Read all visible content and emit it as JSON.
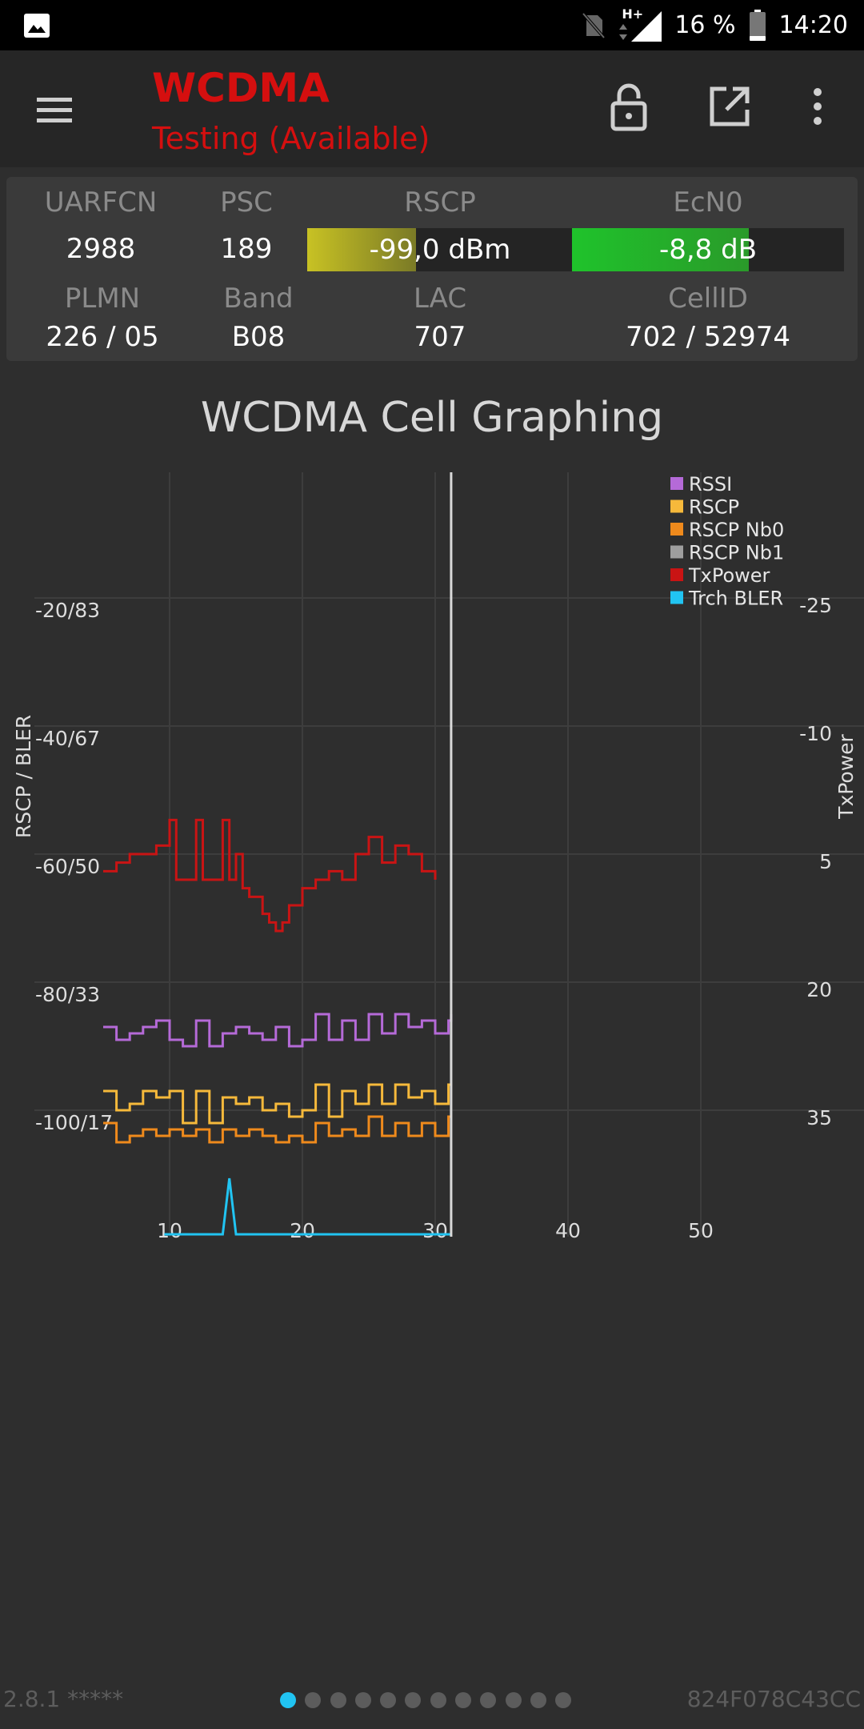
{
  "status_bar": {
    "network_type": "H+",
    "battery_percent": "16 %",
    "time": "14:20",
    "icons": [
      "gallery-icon",
      "no-sim-icon",
      "data-arrows-icon",
      "signal-icon",
      "battery-icon"
    ]
  },
  "app_bar": {
    "title": "WCDMA",
    "subtitle": "Testing (Available)",
    "title_color": "#d50f0f",
    "icons": [
      "menu-icon",
      "lock-open-icon",
      "open-external-icon",
      "more-vert-icon"
    ]
  },
  "cell_info": {
    "uarfcn_label": "UARFCN",
    "uarfcn": "2988",
    "psc_label": "PSC",
    "psc": "189",
    "rscp_label": "RSCP",
    "rscp": "-99,0 dBm",
    "rscp_level": 0.41,
    "rscp_color": "#c8c224",
    "ecn0_label": "EcN0",
    "ecn0": "-8,8 dB",
    "ecn0_level": 0.65,
    "ecn0_color": "#1fc32b",
    "plmn_label": "PLMN",
    "plmn": "226 / 05",
    "band_label": "Band",
    "band": "B08",
    "lac_label": "LAC",
    "lac": "707",
    "cellid_label": "CellID",
    "cellid": "702 / 52974"
  },
  "chart_data": {
    "type": "line",
    "title": "WCDMA Cell Graphing",
    "ylabel_left": "RSCP / BLER",
    "ylabel_right": "TxPower",
    "x_ticks": [
      10,
      20,
      30,
      40,
      50
    ],
    "xlim": [
      0,
      57
    ],
    "y_left_ticks": [
      "-20/83",
      "-40/67",
      "-60/50",
      "-80/33",
      "-100/17"
    ],
    "y_left_tick_values": [
      -20,
      -40,
      -60,
      -80,
      -100
    ],
    "y_right_ticks": [
      "-25",
      "-10",
      "5",
      "20",
      "35"
    ],
    "y_right_tick_values": [
      -25,
      -10,
      5,
      20,
      35
    ],
    "ylim": [
      -120,
      0
    ],
    "cursor_x": 31.2,
    "grid": true,
    "legend_position": "top-right",
    "series": [
      {
        "name": "RSSI",
        "color": "#b56ad8",
        "axis": "left",
        "x": [
          5,
          6,
          7,
          8,
          9,
          10,
          11,
          12,
          13,
          14,
          15,
          16,
          17,
          18,
          19,
          20,
          21,
          22,
          23,
          24,
          25,
          26,
          27,
          28,
          29,
          30,
          31,
          31.2
        ],
        "y": [
          -87,
          -89,
          -88,
          -87,
          -86,
          -89,
          -90,
          -86,
          -90,
          -88,
          -87,
          -88,
          -89,
          -87,
          -90,
          -89,
          -85,
          -89,
          -86,
          -89,
          -85,
          -88,
          -85,
          -87,
          -86,
          -88,
          -86,
          -85
        ]
      },
      {
        "name": "RSCP",
        "color": "#f6b93b",
        "axis": "left",
        "x": [
          5,
          6,
          7,
          8,
          9,
          10,
          11,
          12,
          13,
          14,
          15,
          16,
          17,
          18,
          19,
          20,
          21,
          22,
          23,
          24,
          25,
          26,
          27,
          28,
          29,
          30,
          31,
          31.2
        ],
        "y": [
          -97,
          -100,
          -99,
          -97,
          -98,
          -97,
          -102,
          -97,
          -102,
          -98,
          -99,
          -98,
          -100,
          -99,
          -101,
          -100,
          -96,
          -101,
          -97,
          -99,
          -96,
          -99,
          -96,
          -98,
          -97,
          -99,
          -96,
          -96
        ]
      },
      {
        "name": "RSCP Nb0",
        "color": "#ef8a1c",
        "axis": "left",
        "x": [
          5,
          6,
          7,
          8,
          9,
          10,
          11,
          12,
          13,
          14,
          15,
          16,
          17,
          18,
          19,
          20,
          21,
          22,
          23,
          24,
          25,
          26,
          27,
          28,
          29,
          30,
          31,
          31.2
        ],
        "y": [
          -102,
          -105,
          -104,
          -103,
          -104,
          -103,
          -104,
          -103,
          -105,
          -103,
          -104,
          -103,
          -104,
          -105,
          -104,
          -105,
          -102,
          -104,
          -103,
          -104,
          -101,
          -104,
          -102,
          -104,
          -102,
          -104,
          -101,
          -101
        ]
      },
      {
        "name": "RSCP Nb1",
        "color": "#9e9e9e",
        "axis": "left",
        "x": [],
        "y": []
      },
      {
        "name": "TxPower",
        "color": "#c91414",
        "axis": "right",
        "x": [
          5,
          6,
          7,
          8,
          9,
          9.5,
          10,
          10.5,
          11,
          12,
          12.5,
          13,
          14,
          14.5,
          15,
          15.5,
          16,
          17,
          17.5,
          18,
          18.5,
          19,
          20,
          21,
          22,
          23,
          24,
          25,
          26,
          27,
          28,
          29,
          30
        ],
        "y": [
          7,
          6,
          5,
          5,
          4,
          4,
          1,
          8,
          8,
          1,
          8,
          8,
          1,
          8,
          5,
          9,
          10,
          12,
          13,
          14,
          13,
          11,
          9,
          8,
          7,
          8,
          5,
          3,
          6,
          4,
          5,
          7,
          8
        ]
      },
      {
        "name": "Trch BLER",
        "color": "#21c4f2",
        "axis": "left",
        "x": [
          9.6,
          13,
          14,
          14.5,
          15,
          19,
          31,
          31.2
        ],
        "y": [
          0,
          0,
          0,
          5,
          0,
          0,
          0,
          0
        ]
      }
    ]
  },
  "footer": {
    "version": "2.8.1 *****",
    "device_id": "824F078C43CC",
    "page_count": 12,
    "active_page": 0
  }
}
